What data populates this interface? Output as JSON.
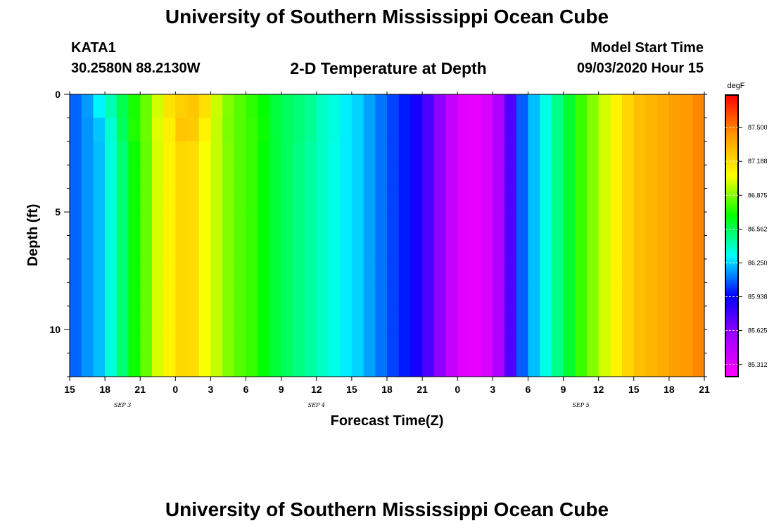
{
  "page": {
    "title": "University of Southern Mississippi Ocean Cube",
    "footer_title": "University of Southern Mississippi Ocean Cube",
    "station_id": "KATA1",
    "station_coords": "30.2580N 88.2130W",
    "plot_title": "2-D Temperature at Depth",
    "start_label": "Model Start Time",
    "start_value": "09/03/2020 Hour 15"
  },
  "colors": {
    "palette": [
      "#ff00ff",
      "#a000ff",
      "#0000ff",
      "#00ffff",
      "#00ff00",
      "#ffff00",
      "#ff9900",
      "#ff0000"
    ]
  },
  "chart_data": {
    "type": "heatmap",
    "title": "2-D Temperature at Depth",
    "xlabel": "Forecast Time(Z)",
    "ylabel": "Depth (ft)",
    "units": "degF",
    "x_range_hours": [
      0,
      54
    ],
    "y_range_ft": [
      0,
      12
    ],
    "x_tick_labels": [
      "15",
      "18",
      "21",
      "0",
      "3",
      "6",
      "9",
      "12",
      "15",
      "18",
      "21",
      "0",
      "3",
      "6",
      "9",
      "12",
      "15",
      "18",
      "21"
    ],
    "y_tick_labels": [
      "0",
      "5",
      "10"
    ],
    "y_tick_values": [
      0,
      5,
      10
    ],
    "date_labels": [
      {
        "text": "SEP 3",
        "hour": 4.5
      },
      {
        "text": "SEP 4",
        "hour": 21
      },
      {
        "text": "SEP 5",
        "hour": 43.5
      }
    ],
    "colorbar_labels": [
      "87.500",
      "87.188",
      "86.875",
      "86.562",
      "86.250",
      "85.938",
      "85.625",
      "85.312"
    ],
    "colorbar_values": [
      87.5,
      87.188,
      86.875,
      86.562,
      86.25,
      85.938,
      85.625,
      85.312
    ],
    "color_range": [
      85.2,
      87.8
    ],
    "hours": [
      0,
      1,
      2,
      3,
      4,
      5,
      6,
      7,
      8,
      9,
      10,
      11,
      12,
      13,
      14,
      15,
      16,
      17,
      18,
      19,
      20,
      21,
      22,
      23,
      24,
      25,
      26,
      27,
      28,
      29,
      30,
      31,
      32,
      33,
      34,
      35,
      36,
      37,
      38,
      39,
      40,
      41,
      42,
      43,
      44,
      45,
      46,
      47,
      48,
      49,
      50,
      51,
      52,
      53
    ],
    "depths_ft": [
      0,
      1,
      2,
      3,
      4,
      5,
      6,
      7,
      8,
      9,
      10,
      11
    ],
    "values": [
      [
        86.09,
        86.17,
        86.3,
        86.43,
        86.57,
        86.72,
        86.84,
        86.99,
        87.16,
        87.23,
        87.26,
        87.17,
        86.98,
        86.87,
        86.81,
        86.75,
        86.69,
        86.6,
        86.55,
        86.51,
        86.47,
        86.4,
        86.36,
        86.29,
        86.25,
        86.18,
        86.11,
        86.04,
        85.98,
        85.89,
        85.77,
        85.61,
        85.43,
        85.31,
        85.29,
        85.35,
        85.52,
        85.76,
        86.08,
        86.22,
        86.35,
        86.48,
        86.62,
        86.77,
        86.88,
        86.99,
        87.1,
        87.21,
        87.29,
        87.33,
        87.36,
        87.41,
        87.42,
        87.47
      ],
      [
        86.09,
        86.16,
        86.23,
        86.38,
        86.55,
        86.73,
        86.84,
        87.01,
        87.11,
        87.27,
        87.25,
        87.1,
        86.97,
        86.86,
        86.81,
        86.76,
        86.7,
        86.6,
        86.55,
        86.51,
        86.47,
        86.4,
        86.36,
        86.29,
        86.25,
        86.18,
        86.11,
        86.04,
        85.98,
        85.89,
        85.77,
        85.61,
        85.43,
        85.31,
        85.29,
        85.35,
        85.52,
        85.76,
        86.08,
        86.22,
        86.35,
        86.48,
        86.62,
        86.77,
        86.88,
        86.99,
        87.1,
        87.21,
        87.29,
        87.33,
        87.36,
        87.41,
        87.42,
        87.47
      ],
      [
        86.09,
        86.16,
        86.22,
        86.37,
        86.52,
        86.7,
        86.83,
        87.0,
        87.1,
        87.2,
        87.18,
        87.05,
        86.97,
        86.87,
        86.81,
        86.76,
        86.68,
        86.61,
        86.55,
        86.5,
        86.45,
        86.4,
        86.35,
        86.29,
        86.25,
        86.18,
        86.11,
        86.04,
        85.98,
        85.89,
        85.77,
        85.61,
        85.43,
        85.31,
        85.29,
        85.35,
        85.52,
        85.76,
        86.08,
        86.22,
        86.35,
        86.48,
        86.62,
        86.77,
        86.88,
        86.99,
        87.1,
        87.21,
        87.29,
        87.33,
        87.36,
        87.41,
        87.42,
        87.47
      ],
      [
        86.09,
        86.16,
        86.22,
        86.37,
        86.52,
        86.7,
        86.83,
        87.0,
        87.1,
        87.2,
        87.18,
        87.05,
        86.97,
        86.87,
        86.81,
        86.76,
        86.68,
        86.61,
        86.55,
        86.5,
        86.45,
        86.4,
        86.35,
        86.29,
        86.25,
        86.18,
        86.11,
        86.04,
        85.98,
        85.89,
        85.77,
        85.61,
        85.43,
        85.31,
        85.29,
        85.35,
        85.52,
        85.76,
        86.08,
        86.22,
        86.35,
        86.48,
        86.62,
        86.77,
        86.88,
        86.99,
        87.1,
        87.21,
        87.29,
        87.33,
        87.36,
        87.41,
        87.42,
        87.47
      ],
      [
        86.09,
        86.16,
        86.22,
        86.37,
        86.52,
        86.7,
        86.83,
        87.0,
        87.1,
        87.2,
        87.18,
        87.05,
        86.97,
        86.87,
        86.81,
        86.76,
        86.68,
        86.61,
        86.55,
        86.5,
        86.45,
        86.4,
        86.35,
        86.29,
        86.25,
        86.18,
        86.11,
        86.04,
        85.98,
        85.89,
        85.77,
        85.61,
        85.43,
        85.31,
        85.29,
        85.35,
        85.52,
        85.76,
        86.08,
        86.22,
        86.35,
        86.48,
        86.62,
        86.77,
        86.88,
        86.99,
        87.1,
        87.21,
        87.29,
        87.33,
        87.36,
        87.41,
        87.42,
        87.47
      ],
      [
        86.09,
        86.16,
        86.22,
        86.37,
        86.52,
        86.7,
        86.83,
        87.0,
        87.1,
        87.2,
        87.18,
        87.05,
        86.97,
        86.87,
        86.81,
        86.76,
        86.68,
        86.61,
        86.55,
        86.5,
        86.45,
        86.4,
        86.35,
        86.29,
        86.25,
        86.18,
        86.11,
        86.04,
        85.98,
        85.89,
        85.77,
        85.61,
        85.43,
        85.31,
        85.29,
        85.35,
        85.52,
        85.76,
        86.08,
        86.22,
        86.35,
        86.48,
        86.62,
        86.77,
        86.88,
        86.99,
        87.1,
        87.21,
        87.29,
        87.33,
        87.36,
        87.41,
        87.42,
        87.47
      ],
      [
        86.09,
        86.16,
        86.22,
        86.37,
        86.52,
        86.7,
        86.83,
        87.0,
        87.1,
        87.2,
        87.18,
        87.05,
        86.97,
        86.87,
        86.81,
        86.76,
        86.68,
        86.61,
        86.55,
        86.5,
        86.45,
        86.4,
        86.35,
        86.29,
        86.25,
        86.18,
        86.11,
        86.04,
        85.98,
        85.89,
        85.77,
        85.61,
        85.43,
        85.31,
        85.29,
        85.35,
        85.52,
        85.76,
        86.08,
        86.22,
        86.35,
        86.48,
        86.62,
        86.77,
        86.88,
        86.99,
        87.1,
        87.21,
        87.29,
        87.33,
        87.36,
        87.41,
        87.42,
        87.47
      ],
      [
        86.09,
        86.16,
        86.22,
        86.37,
        86.52,
        86.7,
        86.83,
        87.0,
        87.1,
        87.2,
        87.18,
        87.05,
        86.97,
        86.87,
        86.81,
        86.76,
        86.68,
        86.61,
        86.55,
        86.5,
        86.45,
        86.4,
        86.35,
        86.29,
        86.25,
        86.18,
        86.11,
        86.04,
        85.98,
        85.89,
        85.77,
        85.61,
        85.43,
        85.31,
        85.29,
        85.35,
        85.52,
        85.76,
        86.08,
        86.22,
        86.35,
        86.48,
        86.62,
        86.77,
        86.88,
        86.99,
        87.1,
        87.21,
        87.29,
        87.33,
        87.36,
        87.41,
        87.42,
        87.47
      ],
      [
        86.09,
        86.16,
        86.22,
        86.37,
        86.52,
        86.7,
        86.83,
        87.0,
        87.1,
        87.2,
        87.18,
        87.05,
        86.97,
        86.87,
        86.81,
        86.76,
        86.68,
        86.61,
        86.55,
        86.5,
        86.45,
        86.4,
        86.35,
        86.29,
        86.25,
        86.18,
        86.11,
        86.04,
        85.98,
        85.89,
        85.77,
        85.61,
        85.43,
        85.31,
        85.29,
        85.35,
        85.52,
        85.76,
        86.08,
        86.22,
        86.35,
        86.48,
        86.62,
        86.77,
        86.88,
        86.99,
        87.1,
        87.21,
        87.29,
        87.33,
        87.36,
        87.41,
        87.42,
        87.47
      ],
      [
        86.09,
        86.16,
        86.22,
        86.37,
        86.52,
        86.7,
        86.83,
        87.0,
        87.1,
        87.2,
        87.18,
        87.05,
        86.97,
        86.87,
        86.81,
        86.76,
        86.68,
        86.61,
        86.55,
        86.5,
        86.45,
        86.4,
        86.35,
        86.29,
        86.25,
        86.18,
        86.11,
        86.04,
        85.98,
        85.89,
        85.77,
        85.61,
        85.43,
        85.31,
        85.29,
        85.35,
        85.52,
        85.76,
        86.08,
        86.22,
        86.35,
        86.48,
        86.62,
        86.77,
        86.88,
        86.99,
        87.1,
        87.21,
        87.29,
        87.33,
        87.36,
        87.41,
        87.42,
        87.47
      ],
      [
        86.09,
        86.16,
        86.22,
        86.37,
        86.52,
        86.7,
        86.83,
        87.0,
        87.1,
        87.2,
        87.18,
        87.05,
        86.97,
        86.87,
        86.81,
        86.76,
        86.68,
        86.61,
        86.55,
        86.5,
        86.45,
        86.4,
        86.35,
        86.29,
        86.25,
        86.18,
        86.11,
        86.04,
        85.98,
        85.89,
        85.77,
        85.61,
        85.43,
        85.31,
        85.29,
        85.35,
        85.52,
        85.76,
        86.08,
        86.22,
        86.35,
        86.48,
        86.62,
        86.77,
        86.88,
        86.99,
        87.1,
        87.21,
        87.29,
        87.33,
        87.36,
        87.41,
        87.42,
        87.47
      ],
      [
        86.09,
        86.16,
        86.22,
        86.37,
        86.52,
        86.7,
        86.83,
        87.0,
        87.1,
        87.2,
        87.18,
        87.05,
        86.97,
        86.87,
        86.81,
        86.76,
        86.68,
        86.61,
        86.55,
        86.5,
        86.45,
        86.4,
        86.35,
        86.29,
        86.25,
        86.18,
        86.11,
        86.04,
        85.98,
        85.89,
        85.77,
        85.61,
        85.43,
        85.31,
        85.29,
        85.35,
        85.52,
        85.76,
        86.08,
        86.22,
        86.35,
        86.48,
        86.62,
        86.77,
        86.88,
        86.99,
        87.1,
        87.21,
        87.29,
        87.33,
        87.36,
        87.41,
        87.42,
        87.47
      ]
    ]
  }
}
